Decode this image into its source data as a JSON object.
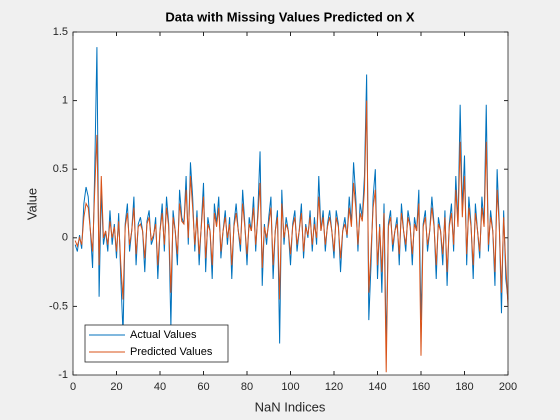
{
  "chart_data": {
    "type": "line",
    "title": "Data with Missing Values Predicted on X",
    "x_label": "NaN Indices",
    "y_label": "Value",
    "x": [
      1,
      2,
      3,
      4,
      5,
      6,
      7,
      8,
      9,
      10,
      11,
      12,
      13,
      14,
      15,
      16,
      17,
      18,
      19,
      20,
      21,
      22,
      23,
      24,
      25,
      26,
      27,
      28,
      29,
      30,
      31,
      32,
      33,
      34,
      35,
      36,
      37,
      38,
      39,
      40,
      41,
      42,
      43,
      44,
      45,
      46,
      47,
      48,
      49,
      50,
      51,
      52,
      53,
      54,
      55,
      56,
      57,
      58,
      59,
      60,
      61,
      62,
      63,
      64,
      65,
      66,
      67,
      68,
      69,
      70,
      71,
      72,
      73,
      74,
      75,
      76,
      77,
      78,
      79,
      80,
      81,
      82,
      83,
      84,
      85,
      86,
      87,
      88,
      89,
      90,
      91,
      92,
      93,
      94,
      95,
      96,
      97,
      98,
      99,
      100,
      101,
      102,
      103,
      104,
      105,
      106,
      107,
      108,
      109,
      110,
      111,
      112,
      113,
      114,
      115,
      116,
      117,
      118,
      119,
      120,
      121,
      122,
      123,
      124,
      125,
      126,
      127,
      128,
      129,
      130,
      131,
      132,
      133,
      134,
      135,
      136,
      137,
      138,
      139,
      140,
      141,
      142,
      143,
      144,
      145,
      146,
      147,
      148,
      149,
      150,
      151,
      152,
      153,
      154,
      155,
      156,
      157,
      158,
      159,
      160,
      161,
      162,
      163,
      164,
      165,
      166,
      167,
      168,
      169,
      170,
      171,
      172,
      173,
      174,
      175,
      176,
      177,
      178,
      179,
      180,
      181,
      182,
      183,
      184,
      185,
      186,
      187,
      188,
      189,
      190,
      191,
      192,
      193,
      194,
      195,
      196,
      197,
      198,
      199,
      200
    ],
    "series": [
      {
        "name": "Actual Values",
        "color": "#0072bd",
        "values": [
          -0.05,
          -0.1,
          0.02,
          -0.08,
          0.25,
          0.37,
          0.3,
          0.05,
          -0.22,
          0.5,
          1.39,
          -0.43,
          0.35,
          -0.05,
          0.05,
          -0.1,
          0.2,
          -0.05,
          0.1,
          -0.15,
          0.18,
          -0.3,
          -0.7,
          0.1,
          0.25,
          -0.1,
          0.05,
          0.3,
          -0.2,
          0.1,
          0.15,
          0.05,
          -0.25,
          0.12,
          0.2,
          -0.05,
          0.0,
          0.15,
          -0.3,
          0.05,
          0.25,
          -0.1,
          0.3,
          0.1,
          -0.65,
          0.2,
          0.05,
          -0.2,
          0.35,
          0.15,
          0.1,
          0.45,
          -0.05,
          0.55,
          0.3,
          -0.1,
          0.2,
          -0.2,
          0.1,
          0.4,
          -0.25,
          0.15,
          0.05,
          -0.3,
          0.25,
          0.1,
          0.3,
          -0.15,
          0.05,
          0.2,
          -0.05,
          0.15,
          -0.3,
          0.1,
          0.25,
          0.05,
          -0.1,
          0.35,
          0.1,
          -0.2,
          0.15,
          0.05,
          0.3,
          -0.1,
          0.2,
          0.63,
          -0.35,
          0.1,
          -0.05,
          0.15,
          0.3,
          -0.3,
          0.05,
          0.2,
          -0.77,
          0.35,
          -0.05,
          0.15,
          0.05,
          -0.2,
          0.1,
          0.2,
          -0.1,
          0.05,
          0.25,
          -0.15,
          0.1,
          0.0,
          0.2,
          -0.1,
          0.15,
          -0.05,
          0.45,
          0.05,
          0.2,
          -0.1,
          0.1,
          0.2,
          0.05,
          -0.15,
          0.2,
          0.1,
          -0.25,
          0.05,
          0.15,
          0.0,
          0.3,
          0.1,
          0.55,
          0.3,
          -0.1,
          0.25,
          0.15,
          0.45,
          1.19,
          -0.6,
          -0.2,
          0.3,
          0.5,
          -0.3,
          0.1,
          -0.4,
          0.25,
          -0.8,
          0.1,
          0.2,
          -0.1,
          0.05,
          0.15,
          -0.2,
          0.25,
          0.05,
          -0.1,
          0.2,
          0.1,
          -0.2,
          0.15,
          0.05,
          0.35,
          -0.6,
          0.1,
          0.2,
          -0.1,
          0.05,
          0.3,
          0.1,
          -0.3,
          0.15,
          0.05,
          -0.2,
          0.2,
          -0.35,
          0.1,
          0.25,
          -0.1,
          0.45,
          0.1,
          0.97,
          0.2,
          0.6,
          -0.2,
          0.3,
          0.1,
          -0.3,
          0.25,
          0.05,
          -0.15,
          0.3,
          0.1,
          0.97,
          -0.1,
          0.2,
          0.05,
          -0.35,
          0.5,
          0.1,
          -0.55,
          0.2,
          -0.3,
          -0.45
        ]
      },
      {
        "name": "Predicted Values",
        "color": "#d95319",
        "values": [
          -0.02,
          -0.06,
          0.0,
          -0.05,
          0.15,
          0.25,
          0.22,
          0.05,
          -0.1,
          0.35,
          0.75,
          -0.2,
          0.45,
          0.0,
          0.05,
          -0.05,
          0.12,
          0.0,
          0.08,
          -0.1,
          0.12,
          -0.2,
          -0.45,
          0.08,
          0.18,
          -0.05,
          0.05,
          0.22,
          -0.12,
          0.08,
          0.1,
          0.05,
          -0.15,
          0.1,
          0.15,
          -0.02,
          0.02,
          0.1,
          -0.2,
          0.05,
          0.18,
          -0.05,
          0.22,
          0.08,
          -0.4,
          0.15,
          0.05,
          -0.12,
          0.25,
          0.12,
          0.1,
          0.35,
          0.0,
          0.45,
          0.22,
          -0.05,
          0.15,
          -0.12,
          0.08,
          0.3,
          -0.15,
          0.1,
          0.05,
          -0.2,
          0.18,
          0.08,
          0.22,
          -0.1,
          0.05,
          0.15,
          0.0,
          0.1,
          -0.2,
          0.08,
          0.18,
          0.05,
          -0.05,
          0.25,
          0.08,
          -0.12,
          0.1,
          0.05,
          0.22,
          -0.05,
          0.15,
          0.4,
          -0.22,
          0.08,
          0.0,
          0.1,
          0.22,
          -0.2,
          0.05,
          0.15,
          -0.45,
          0.25,
          0.0,
          0.1,
          0.05,
          -0.12,
          0.08,
          0.15,
          -0.05,
          0.05,
          0.18,
          -0.1,
          0.08,
          0.02,
          0.15,
          -0.05,
          0.1,
          0.0,
          0.3,
          0.05,
          0.15,
          -0.05,
          0.08,
          0.15,
          0.05,
          -0.1,
          0.15,
          0.08,
          -0.15,
          0.05,
          0.1,
          0.02,
          0.22,
          0.08,
          0.4,
          0.22,
          -0.05,
          0.18,
          0.12,
          0.35,
          1.0,
          -0.4,
          -0.1,
          0.22,
          0.35,
          -0.2,
          0.08,
          -0.25,
          0.18,
          -0.98,
          0.08,
          0.15,
          -0.05,
          0.05,
          0.1,
          -0.12,
          0.18,
          0.05,
          -0.05,
          0.15,
          0.08,
          -0.12,
          0.1,
          0.05,
          0.25,
          -0.86,
          0.08,
          0.15,
          -0.05,
          0.05,
          0.22,
          0.08,
          -0.2,
          0.1,
          0.05,
          -0.12,
          0.15,
          -0.25,
          0.08,
          0.18,
          -0.05,
          0.35,
          0.08,
          0.7,
          0.15,
          0.45,
          -0.12,
          0.22,
          0.08,
          -0.2,
          0.18,
          0.05,
          -0.1,
          0.22,
          0.08,
          0.7,
          -0.05,
          0.15,
          0.05,
          -0.25,
          0.35,
          0.08,
          -0.4,
          0.15,
          -0.2,
          -0.5
        ]
      }
    ],
    "xlim": [
      0,
      200
    ],
    "xticks": [
      0,
      20,
      40,
      60,
      80,
      100,
      120,
      140,
      160,
      180,
      200
    ],
    "ylim": [
      -1,
      1.5
    ],
    "yticks": [
      -1,
      -0.5,
      0,
      0.5,
      1,
      1.5
    ],
    "legend": "lower left"
  }
}
